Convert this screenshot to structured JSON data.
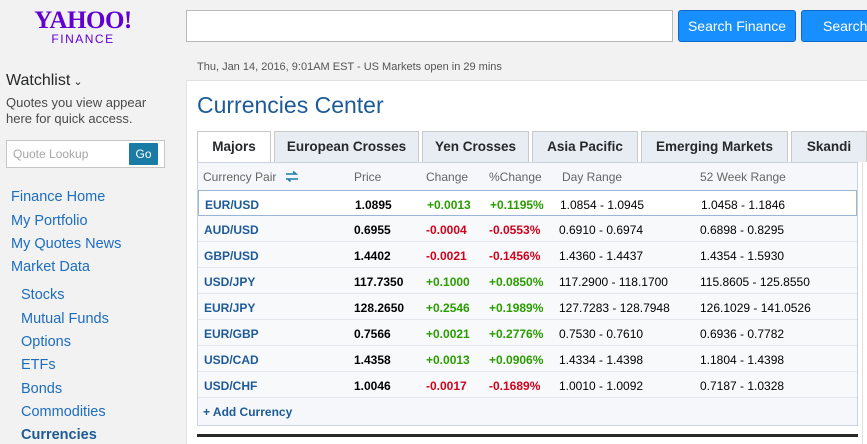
{
  "logo": {
    "line1": "YAHOO!",
    "line2": "FINANCE"
  },
  "header": {
    "search_placeholder": "",
    "search_finance_label": "Search Finance",
    "search_web_label": "Search"
  },
  "watchlist": {
    "title": "Watchlist",
    "chevron": "⌄",
    "description": "Quotes you view appear here for quick access.",
    "quote_lookup_placeholder": "Quote Lookup",
    "go_label": "Go"
  },
  "nav": {
    "top": [
      "Finance Home",
      "My Portfolio",
      "My Quotes News",
      "Market Data"
    ],
    "sub": [
      "Stocks",
      "Mutual Funds",
      "Options",
      "ETFs",
      "Bonds",
      "Commodities",
      "Currencies"
    ]
  },
  "main": {
    "dateline": "Thu, Jan 14, 2016, 9:01AM EST - US Markets open in 29 mins",
    "title": "Currencies Center",
    "tabs": [
      "Majors",
      "European Crosses",
      "Yen Crosses",
      "Asia Pacific",
      "Emerging Markets",
      "Skandi"
    ],
    "columns": [
      "Currency Pair",
      "Price",
      "Change",
      "%Change",
      "Day Range",
      "52 Week Range"
    ],
    "rows": [
      {
        "pair": "EUR/USD",
        "price": "1.0895",
        "change": "+0.0013",
        "pct": "+0.1195%",
        "day": "1.0854 - 1.0945",
        "wk": "1.0458 - 1.1846"
      },
      {
        "pair": "AUD/USD",
        "price": "0.6955",
        "change": "-0.0004",
        "pct": "-0.0553%",
        "day": "0.6910 - 0.6974",
        "wk": "0.6898 - 0.8295"
      },
      {
        "pair": "GBP/USD",
        "price": "1.4402",
        "change": "-0.0021",
        "pct": "-0.1456%",
        "day": "1.4360 - 1.4437",
        "wk": "1.4354 - 1.5930"
      },
      {
        "pair": "USD/JPY",
        "price": "117.7350",
        "change": "+0.1000",
        "pct": "+0.0850%",
        "day": "117.2900 - 118.1700",
        "wk": "115.8605 - 125.8550"
      },
      {
        "pair": "EUR/JPY",
        "price": "128.2650",
        "change": "+0.2546",
        "pct": "+0.1989%",
        "day": "127.7283 - 128.7948",
        "wk": "126.1029 - 141.0526"
      },
      {
        "pair": "EUR/GBP",
        "price": "0.7566",
        "change": "+0.0021",
        "pct": "+0.2776%",
        "day": "0.7530 - 0.7610",
        "wk": "0.6936 - 0.7782"
      },
      {
        "pair": "USD/CAD",
        "price": "1.4358",
        "change": "+0.0013",
        "pct": "+0.0906%",
        "day": "1.4334 - 1.4398",
        "wk": "1.1804 - 1.4398"
      },
      {
        "pair": "USD/CHF",
        "price": "1.0046",
        "change": "-0.0017",
        "pct": "-0.1689%",
        "day": "1.0010 - 1.0092",
        "wk": "0.7187 - 1.0328"
      }
    ],
    "add_currency": "+ Add Currency"
  },
  "colors": {
    "brand": "#6001d2",
    "button": "#188fff",
    "link": "#1d6dbf",
    "up": "#2a9d00",
    "down": "#d0021b"
  }
}
